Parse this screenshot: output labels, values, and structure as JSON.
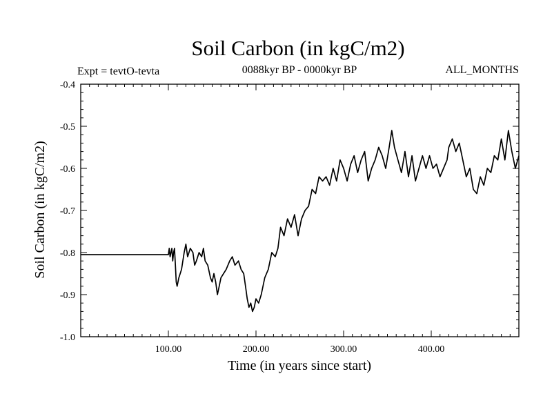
{
  "chart_data": {
    "type": "line",
    "title": "Soil Carbon (in kgC/m2)",
    "subtitle": "0088kyr BP - 0000kyr BP",
    "left_label": "Expt = tevtO-tevta",
    "right_label": "ALL_MONTHS",
    "xlabel": "Time (in years since start)",
    "ylabel": "Soil Carbon (in kgC/m2)",
    "xlim": [
      0,
      500
    ],
    "ylim": [
      -1.0,
      -0.4
    ],
    "xticks": [
      100,
      200,
      300,
      400
    ],
    "xtick_labels": [
      "100.00",
      "200.00",
      "300.00",
      "400.00"
    ],
    "yticks": [
      -1.0,
      -0.9,
      -0.8,
      -0.7,
      -0.6,
      -0.5,
      -0.4
    ],
    "ytick_labels": [
      "-1.0",
      "-0.9",
      "-0.8",
      "-0.7",
      "-0.6",
      "-0.5",
      "-0.4"
    ],
    "grid": false,
    "series": [
      {
        "color": "#000000",
        "x": [
          0,
          100,
          101,
          102,
          103,
          104,
          105,
          106,
          107,
          108,
          109,
          110,
          112,
          115,
          118,
          120,
          122,
          125,
          128,
          130,
          132,
          135,
          138,
          140,
          142,
          145,
          148,
          150,
          152,
          154,
          156,
          158,
          160,
          163,
          166,
          170,
          173,
          176,
          180,
          183,
          186,
          188,
          190,
          192,
          194,
          196,
          198,
          200,
          203,
          206,
          210,
          214,
          218,
          222,
          225,
          228,
          232,
          236,
          240,
          244,
          248,
          252,
          256,
          260,
          264,
          268,
          272,
          276,
          280,
          284,
          288,
          292,
          296,
          300,
          304,
          308,
          312,
          316,
          320,
          324,
          328,
          332,
          336,
          340,
          344,
          348,
          352,
          355,
          358,
          362,
          366,
          370,
          374,
          378,
          382,
          386,
          390,
          394,
          398,
          402,
          406,
          410,
          414,
          418,
          420,
          424,
          428,
          432,
          436,
          440,
          444,
          448,
          452,
          456,
          460,
          464,
          468,
          472,
          476,
          480,
          484,
          488,
          492,
          496,
          500
        ],
        "y": [
          -0.805,
          -0.805,
          -0.79,
          -0.81,
          -0.8,
          -0.79,
          -0.82,
          -0.8,
          -0.79,
          -0.83,
          -0.87,
          -0.88,
          -0.86,
          -0.84,
          -0.8,
          -0.78,
          -0.81,
          -0.79,
          -0.8,
          -0.83,
          -0.82,
          -0.8,
          -0.81,
          -0.79,
          -0.82,
          -0.83,
          -0.86,
          -0.87,
          -0.85,
          -0.87,
          -0.9,
          -0.88,
          -0.86,
          -0.85,
          -0.84,
          -0.82,
          -0.81,
          -0.83,
          -0.82,
          -0.84,
          -0.85,
          -0.88,
          -0.91,
          -0.93,
          -0.92,
          -0.94,
          -0.93,
          -0.91,
          -0.92,
          -0.9,
          -0.86,
          -0.84,
          -0.8,
          -0.81,
          -0.79,
          -0.74,
          -0.76,
          -0.72,
          -0.74,
          -0.71,
          -0.76,
          -0.72,
          -0.7,
          -0.69,
          -0.65,
          -0.66,
          -0.62,
          -0.63,
          -0.62,
          -0.64,
          -0.6,
          -0.63,
          -0.58,
          -0.6,
          -0.63,
          -0.59,
          -0.57,
          -0.61,
          -0.58,
          -0.56,
          -0.63,
          -0.6,
          -0.58,
          -0.55,
          -0.57,
          -0.6,
          -0.55,
          -0.51,
          -0.55,
          -0.58,
          -0.61,
          -0.56,
          -0.62,
          -0.57,
          -0.63,
          -0.6,
          -0.57,
          -0.6,
          -0.57,
          -0.6,
          -0.59,
          -0.62,
          -0.6,
          -0.58,
          -0.55,
          -0.53,
          -0.56,
          -0.54,
          -0.58,
          -0.62,
          -0.6,
          -0.65,
          -0.66,
          -0.62,
          -0.64,
          -0.6,
          -0.61,
          -0.57,
          -0.58,
          -0.53,
          -0.58,
          -0.51,
          -0.56,
          -0.6,
          -0.57
        ]
      }
    ]
  }
}
